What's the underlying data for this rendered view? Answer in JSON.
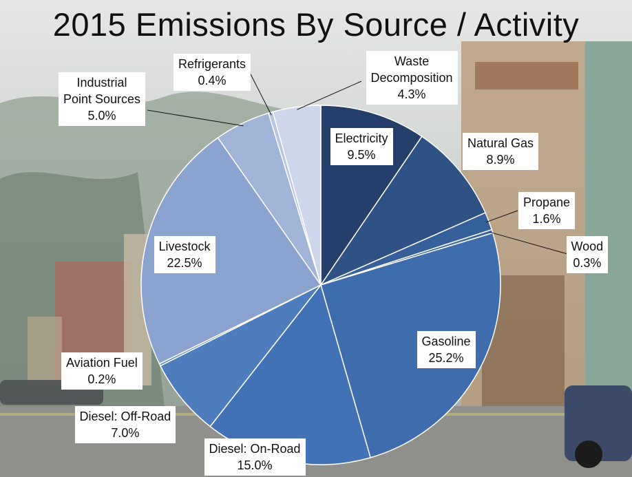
{
  "chart_data": {
    "type": "pie",
    "title": "2015 Emissions By Source / Activity",
    "categories": [
      "Electricity",
      "Natural Gas",
      "Propane",
      "Wood",
      "Gasoline",
      "Diesel: On-Road",
      "Diesel: Off-Road",
      "Aviation Fuel",
      "Livestock",
      "Industrial Point Sources",
      "Refrigerants",
      "Waste Decomposition"
    ],
    "values": [
      9.5,
      8.9,
      1.6,
      0.3,
      25.2,
      15.0,
      7.0,
      0.2,
      22.5,
      5.0,
      0.4,
      4.3
    ],
    "data_labels": [
      {
        "name": [
          "Electricity"
        ],
        "value": "9.5%"
      },
      {
        "name": [
          "Natural Gas"
        ],
        "value": "8.9%"
      },
      {
        "name": [
          "Propane"
        ],
        "value": "1.6%"
      },
      {
        "name": [
          "Wood"
        ],
        "value": "0.3%"
      },
      {
        "name": [
          "Gasoline"
        ],
        "value": "25.2%"
      },
      {
        "name": [
          "Diesel: On-Road"
        ],
        "value": "15.0%"
      },
      {
        "name": [
          "Diesel: Off-Road"
        ],
        "value": "7.0%"
      },
      {
        "name": [
          "Aviation Fuel"
        ],
        "value": "0.2%"
      },
      {
        "name": [
          "Livestock"
        ],
        "value": "22.5%"
      },
      {
        "name": [
          "Industrial",
          "Point Sources"
        ],
        "value": "5.0%"
      },
      {
        "name": [
          "Refrigerants"
        ],
        "value": "0.4%"
      },
      {
        "name": [
          "Waste",
          "Decomposition"
        ],
        "value": "4.3%"
      }
    ],
    "colors": [
      "#253f6b",
      "#2e5283",
      "#35609a",
      "#3a67a4",
      "#3e6cad",
      "#4272b5",
      "#4f7cbd",
      "#5c87c3",
      "#8ba3cf",
      "#a0b4d8",
      "#b8c6e2",
      "#cdd6ea"
    ],
    "legend": "none"
  }
}
